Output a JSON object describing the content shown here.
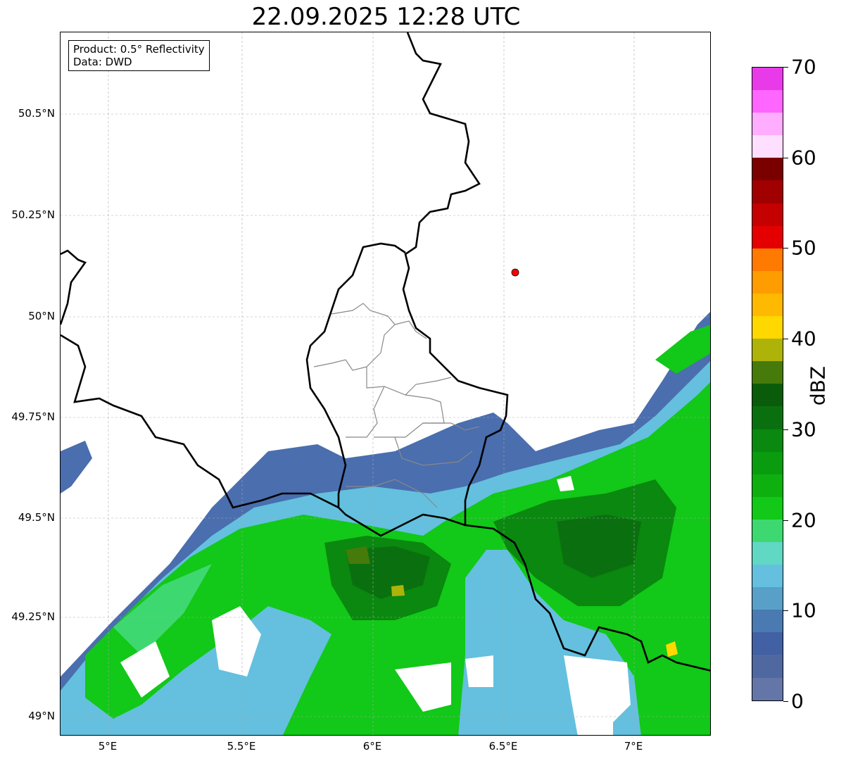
{
  "title": "22.09.2025 12:28 UTC",
  "infobox": {
    "line1": "Product: 0.5° Reflectivity",
    "line2": "Data: DWD"
  },
  "axes": {
    "y_ticks": [
      "50.5°N",
      "50.25°N",
      "50°N",
      "49.75°N",
      "49.5°N",
      "49.25°N",
      "49°N"
    ],
    "x_ticks": [
      "5°E",
      "5.5°E",
      "6°E",
      "6.5°E",
      "7°E"
    ]
  },
  "colorbar": {
    "label": "dBZ",
    "ticks": [
      "70",
      "60",
      "50",
      "40",
      "30",
      "20",
      "10",
      "0"
    ],
    "range": [
      0,
      70
    ],
    "step": 2.5,
    "colors_top_to_bottom": [
      "#e93ae9",
      "#ff66ff",
      "#ffadff",
      "#ffdfff",
      "#7a0000",
      "#a00000",
      "#c40000",
      "#e40000",
      "#ff7a00",
      "#ff9c00",
      "#ffb900",
      "#ffd800",
      "#aeb30a",
      "#467a0a",
      "#0a5c0a",
      "#0a700f",
      "#0a880f",
      "#0a9c0f",
      "#0eb00f",
      "#12c818",
      "#3ed870",
      "#60d8c4",
      "#64c0de",
      "#58a0c8",
      "#4a7ab2",
      "#4260a4",
      "#5068a0",
      "#6476a8"
    ]
  },
  "marker": {
    "color": "#ff0000",
    "lon": 6.56,
    "lat": 50.11
  }
}
